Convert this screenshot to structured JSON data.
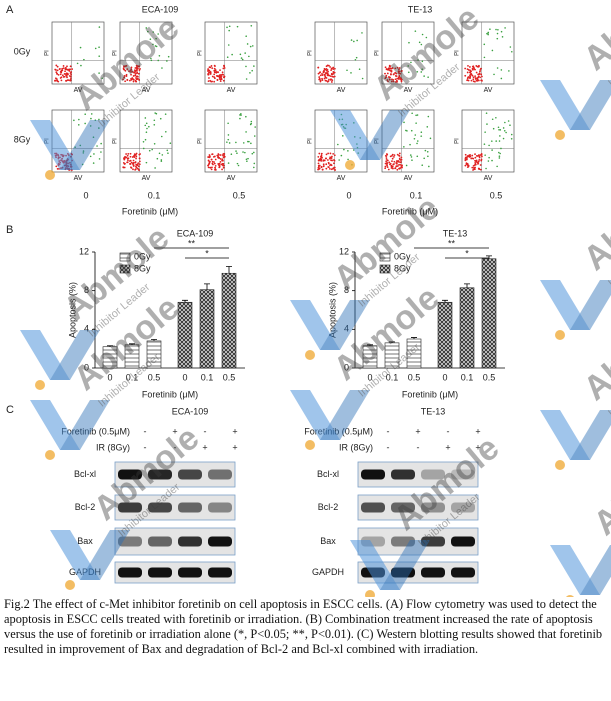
{
  "panel_labels": [
    "A",
    "B",
    "C"
  ],
  "cell_lines": [
    "ECA-109",
    "TE-13"
  ],
  "panel_a": {
    "doses": [
      "0Gy",
      "8Gy"
    ],
    "concentrations": [
      "0",
      "0.1",
      "0.5"
    ],
    "x_title": "Foretinib (μM)",
    "plot_x_label": "AV",
    "plot_y_label": "PI"
  },
  "chart_data": [
    {
      "type": "bar",
      "title": "ECA-109",
      "categories": [
        "0",
        "0.1",
        "0.5"
      ],
      "series": [
        {
          "name": "0Gy",
          "color": "#8c8c8c",
          "values": [
            2.2,
            2.4,
            2.8
          ],
          "errors": [
            0.1,
            0.1,
            0.15
          ]
        },
        {
          "name": "8Gy",
          "color": "#3c3c3c",
          "values": [
            6.8,
            8.1,
            9.8
          ],
          "errors": [
            0.2,
            0.6,
            0.7
          ]
        }
      ],
      "ylim": [
        0,
        12
      ],
      "yticks": [
        0,
        4,
        8,
        12
      ],
      "y_label": "Apoptosis (%)",
      "x_label": "Foretinib (μM)",
      "significance": [
        "**",
        "*"
      ],
      "legend": "upper left"
    },
    {
      "type": "bar",
      "title": "TE-13",
      "categories": [
        "0",
        "0.1",
        "0.5"
      ],
      "series": [
        {
          "name": "0Gy",
          "color": "#8c8c8c",
          "values": [
            2.3,
            2.6,
            3.0
          ],
          "errors": [
            0.1,
            0.1,
            0.15
          ]
        },
        {
          "name": "8Gy",
          "color": "#3c3c3c",
          "values": [
            6.8,
            8.3,
            11.3
          ],
          "errors": [
            0.2,
            0.4,
            0.3
          ]
        }
      ],
      "ylim": [
        0,
        12
      ],
      "yticks": [
        0,
        4,
        8,
        12
      ],
      "y_label": "Apoptosis (%)",
      "x_label": "Foretinib (μM)",
      "significance": [
        "**",
        "*"
      ],
      "legend": "upper left"
    }
  ],
  "panel_c": {
    "treatments": [
      {
        "label": "Foretinib (0.5μM)",
        "signs": [
          "-",
          "+",
          "-",
          "+"
        ]
      },
      {
        "label": "IR (8Gy)",
        "signs": [
          "-",
          "-",
          "+",
          "+"
        ]
      }
    ],
    "proteins": [
      "Bcl-xl",
      "Bcl-2",
      "Bax",
      "GAPDH"
    ]
  },
  "watermark": {
    "brand": "Abmole",
    "tagline": "Inhibitor Leader"
  },
  "caption": "Fig.2 The effect of c-Met inhibitor foretinib on cell apoptosis in ESCC cells. (A) Flow cytometry was used to detect the apoptosis in ESCC cells treated with foretinib or irradiation. (B) Combination treatment increased the rate of apoptosis versus the use of foretinib or irradiation alone (*, P<0.05; **, P<0.01). (C) Western blotting results showed that foretinib resulted in improvement of Bax and degradation of Bcl-2 and Bcl-xl combined with irradiation."
}
